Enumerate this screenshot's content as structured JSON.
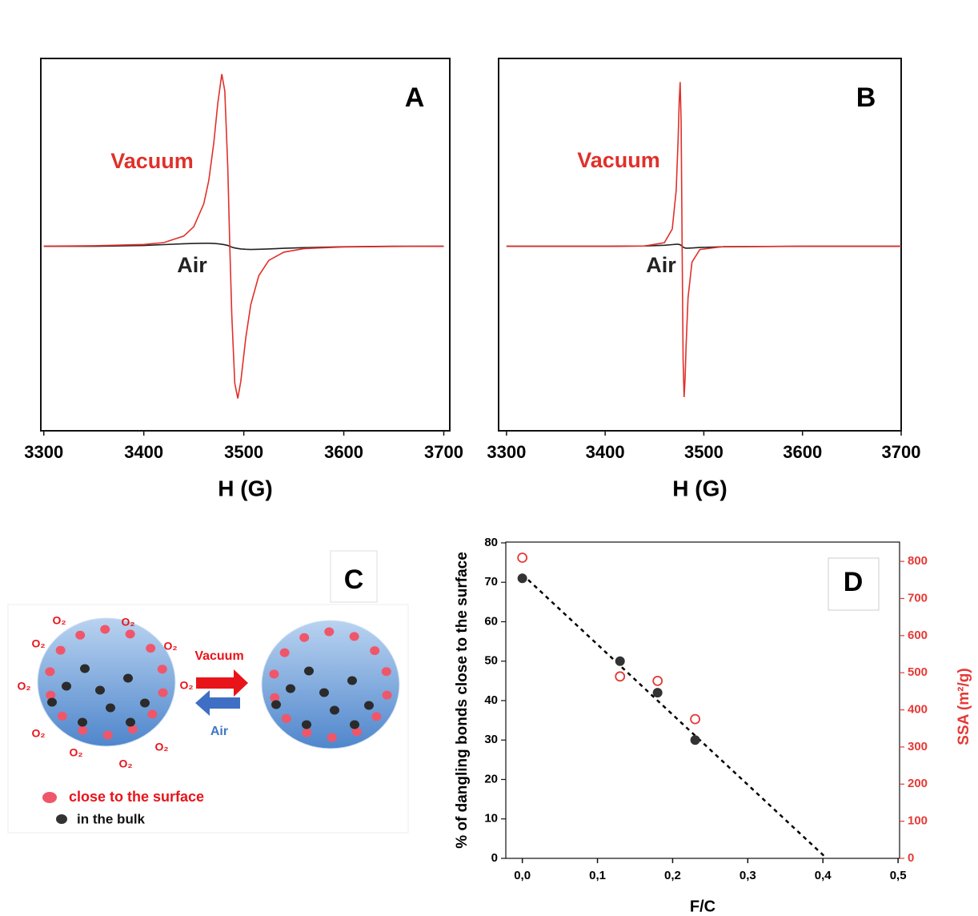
{
  "chart_data": [
    {
      "type": "line",
      "panel_label": "A",
      "xlabel": "H (G)",
      "x": [
        3300,
        3350,
        3400,
        3420,
        3440,
        3450,
        3460,
        3465,
        3470,
        3474,
        3478,
        3481,
        3484,
        3486,
        3488,
        3491,
        3494,
        3497,
        3502,
        3507,
        3515,
        3525,
        3540,
        3560,
        3600,
        3650,
        3700
      ],
      "series": [
        {
          "name": "Vacuum",
          "color": "#e0302a",
          "values": [
            0.001,
            0.003,
            0.011,
            0.022,
            0.061,
            0.117,
            0.254,
            0.393,
            0.617,
            0.853,
            1.027,
            0.926,
            0.466,
            0,
            -0.411,
            -0.818,
            -0.907,
            -0.805,
            -0.545,
            -0.347,
            -0.175,
            -0.084,
            -0.035,
            -0.014,
            -0.004,
            -0.001,
            0
          ]
        },
        {
          "name": "Air",
          "color": "#222222",
          "values": [
            0,
            0,
            0.005,
            0.01,
            0.015,
            0.017,
            0.018,
            0.018,
            0.017,
            0.015,
            0.012,
            0.009,
            0.005,
            0,
            -0.005,
            -0.01,
            -0.013,
            -0.016,
            -0.018,
            -0.019,
            -0.018,
            -0.016,
            -0.012,
            -0.008,
            -0.003,
            0,
            0
          ]
        }
      ],
      "xlim": [
        3297,
        3706
      ],
      "xticks": [
        3300,
        3400,
        3500,
        3600,
        3700
      ],
      "ylim": [
        -1.1,
        1.12
      ]
    },
    {
      "type": "line",
      "panel_label": "B",
      "xlabel": "H (G)",
      "x": [
        3300,
        3400,
        3440,
        3460,
        3468,
        3472,
        3474,
        3475,
        3476,
        3477,
        3478,
        3479,
        3480,
        3481,
        3482,
        3484,
        3488,
        3496,
        3520,
        3600,
        3700
      ],
      "series": [
        {
          "name": "Vacuum",
          "color": "#e0302a",
          "values": [
            0,
            0,
            0.002,
            0.021,
            0.103,
            0.334,
            0.648,
            0.859,
            0.979,
            0.737,
            0,
            -0.677,
            -0.899,
            -0.789,
            -0.596,
            -0.306,
            -0.094,
            -0.019,
            -0.002,
            0,
            0
          ]
        },
        {
          "name": "Air",
          "color": "#222222",
          "values": [
            0,
            0,
            0.002,
            0.006,
            0.01,
            0.012,
            0.012,
            0.011,
            0.009,
            0.005,
            0,
            -0.005,
            -0.008,
            -0.01,
            -0.011,
            -0.011,
            -0.01,
            -0.007,
            -0.003,
            0,
            0
          ]
        }
      ],
      "xlim": [
        3292,
        3700
      ],
      "xticks": [
        3300,
        3400,
        3500,
        3600,
        3700
      ],
      "ylim": [
        -1.1,
        1.12
      ]
    },
    {
      "type": "scatter",
      "panel_label": "D",
      "xlabel": "F/C",
      "ylabel": "% of dangling bonds close to the surface",
      "y2label": "SSA (m²/g)",
      "xlim": [
        -0.022,
        0.502
      ],
      "xticks": [
        {
          "value": 0,
          "label": "0,0"
        },
        {
          "value": 0.1,
          "label": "0,1"
        },
        {
          "value": 0.2,
          "label": "0,2"
        },
        {
          "value": 0.3,
          "label": "0,3"
        },
        {
          "value": 0.4,
          "label": "0,4"
        },
        {
          "value": 0.5,
          "label": "0,5"
        }
      ],
      "ylim": [
        0,
        80.2
      ],
      "yticks": [
        0,
        10,
        20,
        30,
        40,
        50,
        60,
        70,
        80
      ],
      "y2lim": [
        0,
        852
      ],
      "y2ticks": [
        0,
        100,
        200,
        300,
        400,
        500,
        600,
        700,
        800
      ],
      "y2color": "#e53935",
      "series": [
        {
          "color": "#333333",
          "marker": "filled",
          "x": [
            0,
            0.13,
            0.18,
            0.23
          ],
          "values": [
            71,
            50,
            42,
            30
          ]
        },
        {
          "color": "#e53935",
          "marker": "open",
          "axis": "y2",
          "x": [
            0,
            0.13,
            0.18,
            0.23
          ],
          "values": [
            810,
            490,
            478,
            375
          ]
        }
      ],
      "fit": {
        "color": "#000000",
        "style": "dashed",
        "x": [
          0,
          0.405
        ],
        "values": [
          72,
          0
        ]
      }
    }
  ],
  "diagram": {
    "label": "C",
    "o2_labels": [
      "O₂",
      "O₂",
      "O₂",
      "O₂",
      "O₂",
      "O₂",
      "O₂",
      "O₂",
      "O₂",
      "O₂"
    ],
    "arrows": [
      "Vacuum",
      "Air"
    ],
    "legend": [
      "close to the surface",
      "in the bulk"
    ]
  }
}
